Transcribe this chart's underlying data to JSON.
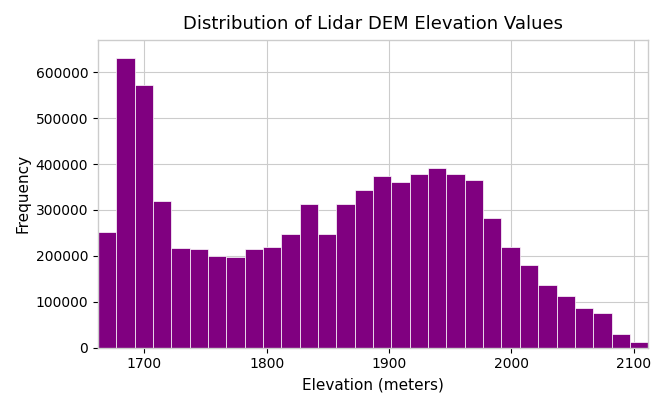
{
  "title": "Distribution of Lidar DEM Elevation Values",
  "xlabel": "Elevation (meters)",
  "ylabel": "Frequency",
  "bar_color": "#800080",
  "edge_color": "white",
  "background_color": "#ffffff",
  "grid_color": "#cccccc",
  "bin_left_edges": [
    1662,
    1677,
    1692,
    1707,
    1722,
    1737,
    1752,
    1767,
    1782,
    1797,
    1812,
    1827,
    1842,
    1857,
    1872,
    1887,
    1902,
    1917,
    1932,
    1947,
    1962,
    1977,
    1992,
    2007,
    2022,
    2037,
    2052,
    2067,
    2082,
    2097
  ],
  "bin_width": 15,
  "frequencies": [
    253000,
    630000,
    573000,
    320000,
    217000,
    215000,
    200000,
    197000,
    214000,
    220000,
    248000,
    313000,
    248000,
    314000,
    343000,
    375000,
    362000,
    378000,
    392000,
    378000,
    366000,
    283000,
    220000,
    180000,
    137000,
    113000,
    87000,
    75000,
    30000,
    13000
  ],
  "xlim": [
    1662,
    2112
  ],
  "ylim": [
    0,
    670000
  ],
  "xticks": [
    1700,
    1800,
    1900,
    2000,
    2100
  ],
  "yticks": [
    0,
    100000,
    200000,
    300000,
    400000,
    500000,
    600000
  ],
  "figsize": [
    6.67,
    4.07
  ],
  "dpi": 100
}
